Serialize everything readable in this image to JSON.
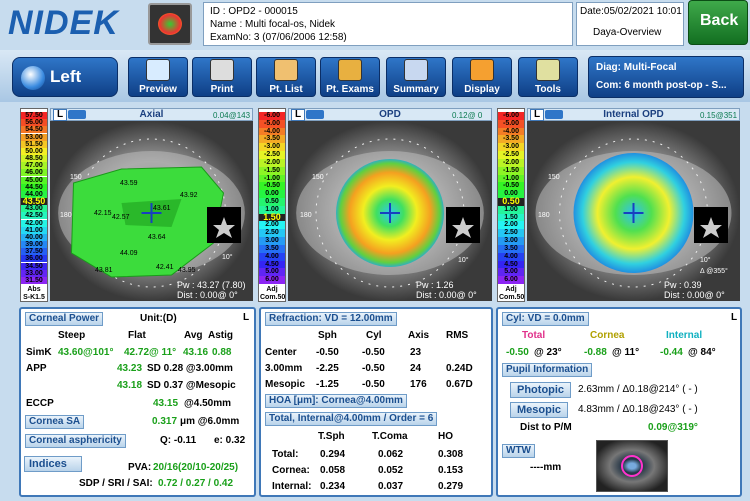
{
  "header": {
    "logo": "NIDEK",
    "id": "ID : OPD2 - 000015",
    "name": "Name : Multi focal-os, Nidek",
    "exam": "ExamNo: 3 (07/06/2006 12:58)",
    "date": "Date:05/02/2021 10:01",
    "view": "Daya-Overview",
    "back": "Back"
  },
  "toolbar": {
    "eye": "Left",
    "buttons": [
      "Preview",
      "Print",
      "Pt. List",
      "Pt. Exams",
      "Summary",
      "Display",
      "Tools"
    ],
    "diag": "Diag: Multi-Focal",
    "comment": "Com: 6 month post-op - S..."
  },
  "maps": [
    {
      "eye": "L",
      "title": "Axial",
      "peak": "0.04@143",
      "scale": [
        "57.50",
        "56.00",
        "54.50",
        "53.00",
        "51.50",
        "50.00",
        "48.50",
        "47.00",
        "46.00",
        "45.00",
        "44.50",
        "44.00",
        "43.50",
        "43.00",
        "42.50",
        "42.00",
        "41.00",
        "40.00",
        "39.00",
        "37.50",
        "36.00",
        "34.50",
        "33.00",
        "31.50"
      ],
      "scale_footer": [
        "Abs",
        "S-K1.5"
      ],
      "pw": "Pw : 43.27 (7.80)",
      "dist": "Dist : 0.00@ 0°",
      "labels": [
        "43.59",
        "42.15",
        "42.57",
        "43.61",
        "43.92",
        "43.64",
        "43.95",
        "44.09",
        "42.41",
        "43.81",
        "150",
        "180",
        "10°"
      ]
    },
    {
      "eye": "L",
      "title": "OPD",
      "peak": "0.12@ 0",
      "scale": [
        "-6.00",
        "-5.00",
        "-4.00",
        "-3.50",
        "-3.00",
        "-2.50",
        "-2.00",
        "-1.50",
        "-1.00",
        "-0.50",
        "0.00",
        "0.50",
        "1.00",
        "1.50",
        "2.00",
        "2.50",
        "3.00",
        "3.50",
        "4.00",
        "4.50",
        "5.00",
        "6.00"
      ],
      "scale_footer": [
        "Adj",
        "Com.50"
      ],
      "pw": "Pw : 1.26",
      "dist": "Dist : 0.00@ 0°",
      "labels": [
        "150",
        "180",
        "10°"
      ]
    },
    {
      "eye": "L",
      "title": "Internal OPD",
      "peak": "0.15@351",
      "scale": [
        "-6.00",
        "-5.00",
        "-4.00",
        "-3.50",
        "-3.00",
        "-2.50",
        "-2.00",
        "-1.50",
        "-1.00",
        "-0.50",
        "0.00",
        "0.50",
        "1.00",
        "1.50",
        "2.00",
        "2.50",
        "3.00",
        "3.50",
        "4.00",
        "4.50",
        "5.00",
        "6.00"
      ],
      "scale_footer": [
        "Adj",
        "Com.50"
      ],
      "pw": "Pw : 0.39",
      "dist": "Dist : 0.00@ 0°",
      "labels": [
        "150",
        "180",
        "10°",
        "Δ @355°"
      ]
    }
  ],
  "corneal_power": {
    "title": "Corneal Power",
    "unit": "Unit:(D)",
    "eye": "L",
    "headers": [
      "Steep",
      "Flat",
      "Avg",
      "Astig"
    ],
    "simk": {
      "label": "SimK",
      "steep": "43.60@101°",
      "flat": "42.72@ 11°",
      "avg": "43.16",
      "astig": "0.88"
    },
    "app": {
      "label": "APP",
      "rows": [
        {
          "value": "43.23",
          "detail": "SD 0.28 @3.00mm"
        },
        {
          "value": "43.18",
          "detail": "SD 0.37 @Mesopic"
        }
      ]
    },
    "eccp": {
      "label": "ECCP",
      "value": "43.15",
      "detail": "@4.50mm"
    },
    "cornea_sa": {
      "label": "Cornea SA",
      "value": "0.317",
      "detail": "μm @6.0mm"
    },
    "asphericity": {
      "label": "Corneal asphericity",
      "q": "Q: -0.11",
      "e": "e: 0.32"
    },
    "indices": {
      "label": "Indices",
      "pva_label": "PVA:",
      "pva": "20/16(20/10-20/25)",
      "sdp_label": "SDP / SRI / SAI:",
      "sdp": "0.72 / 0.27 / 0.42"
    }
  },
  "refraction": {
    "title": "Refraction: VD = 12.00mm",
    "headers": [
      "Sph",
      "Cyl",
      "Axis",
      "RMS"
    ],
    "rows": [
      [
        "Center",
        "-0.50",
        "-0.50",
        "23",
        ""
      ],
      [
        "3.00mm",
        "-2.25",
        "-0.50",
        "24",
        "0.24D"
      ],
      [
        "Mesopic",
        "-1.25",
        "-0.50",
        "176",
        "0.67D"
      ]
    ],
    "hoa_title": "HOA [μm]: Cornea@4.00mm",
    "hoa_subtitle": "Total, Internal@4.00mm / Order = 6",
    "hoa_headers": [
      "T.Sph",
      "T.Coma",
      "HO"
    ],
    "hoa_rows": [
      [
        "Total:",
        "0.294",
        "0.062",
        "0.308"
      ],
      [
        "Cornea:",
        "0.058",
        "0.052",
        "0.153"
      ],
      [
        "Internal:",
        "0.234",
        "0.037",
        "0.279"
      ]
    ]
  },
  "cyl": {
    "title": "Cyl: VD = 0.0mm",
    "eye": "L",
    "columns": [
      {
        "name": "Total",
        "value": "-0.50",
        "axis": "@ 23°"
      },
      {
        "name": "Cornea",
        "value": "-0.88",
        "axis": "@ 11°"
      },
      {
        "name": "Internal",
        "value": "-0.44",
        "axis": "@ 84°"
      }
    ],
    "pupil_title": "Pupil Information",
    "photopic": "Photopic",
    "photopic_value": "2.63mm / Δ0.18@214° ( - )",
    "mesopic": "Mesopic",
    "mesopic_value": "4.83mm / Δ0.18@243° ( - )",
    "dist_label": "Dist to P/M",
    "dist": "0.09@319°",
    "wtw_label": "WTW",
    "wtw": "----mm"
  }
}
